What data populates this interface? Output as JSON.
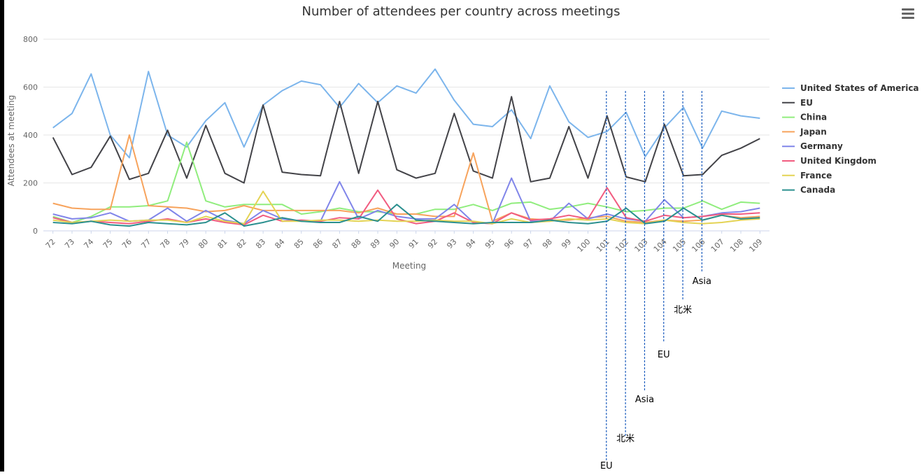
{
  "chart_data": {
    "type": "line",
    "title": "Number of attendees per country across meetings",
    "xlabel": "Meeting",
    "ylabel": "Attendees at meeting",
    "ylim": [
      0,
      800
    ],
    "yticks": [
      "0",
      "200",
      "400",
      "600",
      "800"
    ],
    "grid": true,
    "legend_position": "right",
    "categories": [
      "72",
      "73",
      "74",
      "75",
      "76",
      "77",
      "78",
      "79",
      "80",
      "81",
      "82",
      "83",
      "84",
      "85",
      "86",
      "87",
      "88",
      "89",
      "90",
      "91",
      "92",
      "93",
      "94",
      "95",
      "96",
      "97",
      "98",
      "99",
      "100",
      "101",
      "102",
      "103",
      "104",
      "105",
      "106",
      "107",
      "108",
      "109"
    ],
    "series": [
      {
        "name": "United States of America",
        "color": "#7cb5ec",
        "values": [
          430,
          490,
          655,
          400,
          305,
          665,
          400,
          350,
          460,
          535,
          350,
          525,
          585,
          625,
          610,
          515,
          615,
          535,
          605,
          575,
          675,
          545,
          445,
          435,
          505,
          385,
          605,
          455,
          390,
          415,
          495,
          310,
          430,
          515,
          345,
          500,
          480,
          470
        ]
      },
      {
        "name": "EU",
        "color": "#434348",
        "values": [
          390,
          235,
          265,
          395,
          215,
          240,
          420,
          220,
          440,
          240,
          200,
          525,
          245,
          235,
          230,
          540,
          240,
          540,
          255,
          220,
          240,
          490,
          250,
          220,
          560,
          205,
          220,
          435,
          220,
          480,
          225,
          205,
          445,
          230,
          235,
          315,
          345,
          385
        ]
      },
      {
        "name": "China",
        "color": "#90ed7d",
        "values": [
          60,
          35,
          60,
          100,
          100,
          105,
          125,
          370,
          125,
          100,
          110,
          110,
          110,
          70,
          80,
          95,
          80,
          80,
          70,
          70,
          90,
          90,
          110,
          85,
          115,
          120,
          90,
          100,
          115,
          100,
          80,
          85,
          95,
          95,
          125,
          90,
          120,
          115
        ]
      },
      {
        "name": "Japan",
        "color": "#f7a35c",
        "values": [
          115,
          95,
          90,
          90,
          400,
          105,
          100,
          95,
          80,
          85,
          105,
          85,
          85,
          85,
          85,
          85,
          75,
          95,
          70,
          70,
          60,
          60,
          325,
          40,
          75,
          50,
          45,
          45,
          55,
          60,
          40,
          35,
          45,
          40,
          45,
          65,
          55,
          60
        ]
      },
      {
        "name": "Germany",
        "color": "#8085e9",
        "values": [
          70,
          50,
          55,
          75,
          40,
          45,
          95,
          40,
          85,
          45,
          30,
          85,
          50,
          40,
          40,
          205,
          50,
          85,
          60,
          50,
          50,
          110,
          35,
          30,
          220,
          40,
          40,
          115,
          50,
          70,
          50,
          40,
          130,
          55,
          60,
          75,
          80,
          95
        ]
      },
      {
        "name": "United Kingdom",
        "color": "#f15c80",
        "values": [
          55,
          35,
          40,
          35,
          30,
          40,
          50,
          35,
          50,
          35,
          25,
          65,
          40,
          45,
          40,
          55,
          50,
          170,
          50,
          30,
          40,
          75,
          35,
          30,
          75,
          45,
          50,
          65,
          50,
          180,
          55,
          40,
          65,
          55,
          60,
          70,
          70,
          75
        ]
      },
      {
        "name": "France",
        "color": "#e4d354",
        "values": [
          45,
          35,
          40,
          45,
          40,
          45,
          45,
          35,
          60,
          40,
          30,
          165,
          40,
          40,
          45,
          45,
          40,
          45,
          40,
          40,
          45,
          40,
          40,
          30,
          50,
          35,
          40,
          50,
          45,
          50,
          35,
          30,
          45,
          35,
          30,
          35,
          45,
          50
        ]
      },
      {
        "name": "Canada",
        "color": "#2b908f",
        "values": [
          35,
          30,
          40,
          25,
          20,
          35,
          30,
          25,
          35,
          75,
          20,
          35,
          55,
          40,
          35,
          35,
          60,
          40,
          110,
          45,
          40,
          35,
          30,
          35,
          35,
          35,
          45,
          35,
          30,
          40,
          95,
          30,
          40,
          95,
          45,
          65,
          50,
          55
        ]
      }
    ],
    "annotations": [
      {
        "meeting": "101",
        "label": "EU"
      },
      {
        "meeting": "102",
        "label": "北米"
      },
      {
        "meeting": "103",
        "label": "Asia"
      },
      {
        "meeting": "104",
        "label": "EU"
      },
      {
        "meeting": "105",
        "label": "北米"
      },
      {
        "meeting": "106",
        "label": "Asia"
      }
    ],
    "gridColor": "#e6e6e6",
    "axisLabelColor": "#666666",
    "annotationLineColor": "#1f5fbf"
  }
}
